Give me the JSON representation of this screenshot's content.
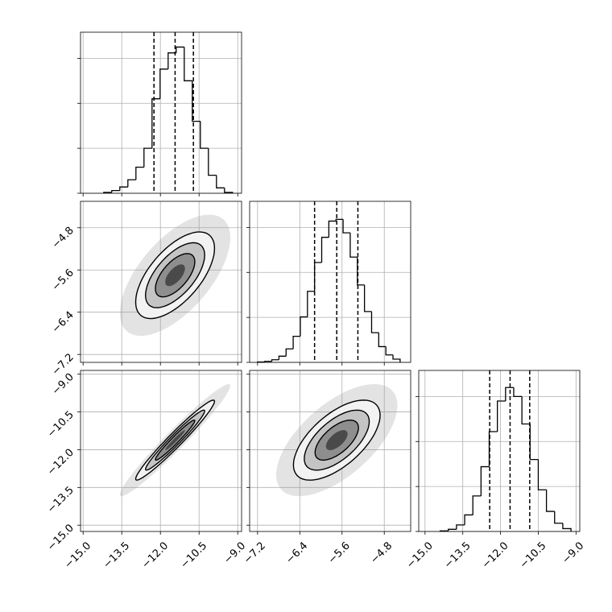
{
  "chart_data": {
    "type": "corner",
    "params": [
      {
        "xlim": [
          -15.1,
          -8.85
        ],
        "xticks": [
          {
            "value": -15,
            "label": "−15.0"
          },
          {
            "value": -13.5,
            "label": "−13.5"
          },
          {
            "value": -12,
            "label": "−12.0"
          },
          {
            "value": -10.5,
            "label": "−10.5"
          },
          {
            "value": -9,
            "label": "−9.0"
          }
        ],
        "bins": [
          -14.2,
          -13.8875,
          -13.575,
          -13.2625,
          -12.95,
          -12.6375,
          -12.325,
          -12.0125,
          -11.7,
          -11.3875,
          -11.075,
          -10.7625,
          -10.45,
          -10.1375,
          -9.825,
          -9.5125,
          -9.2
        ],
        "counts": [
          10,
          30,
          70,
          150,
          290,
          500,
          1050,
          1380,
          1560,
          1625,
          1250,
          800,
          500,
          200,
          60,
          10
        ],
        "quantiles": [
          -12.25,
          -11.43,
          -10.72
        ],
        "ylim": [
          0,
          1790
        ],
        "yticks": [
          0,
          500,
          1000,
          1500
        ]
      },
      {
        "xlim": [
          -7.35,
          -4.3
        ],
        "xticks": [
          {
            "value": -7.2,
            "label": "−7.2"
          },
          {
            "value": -6.4,
            "label": "−6.4"
          },
          {
            "value": -5.6,
            "label": "−5.6"
          },
          {
            "value": -4.8,
            "label": "−4.8"
          }
        ],
        "bins": [
          -7.2,
          -7.065,
          -6.93,
          -6.795,
          -6.66,
          -6.525,
          -6.39,
          -6.255,
          -6.12,
          -5.985,
          -5.85,
          -5.715,
          -5.58,
          -5.445,
          -5.31,
          -5.175,
          -5.04,
          -4.905,
          -4.77,
          -4.635,
          -4.5
        ],
        "counts": [
          4,
          11,
          29,
          69,
          150,
          290,
          505,
          790,
          1110,
          1390,
          1570,
          1590,
          1440,
          1170,
          860,
          565,
          330,
          175,
          83,
          36
        ],
        "quantiles": [
          -6.12,
          -5.7,
          -5.3
        ],
        "ylim": [
          0,
          1790
        ],
        "yticks": [
          0,
          500,
          1000,
          1500
        ]
      },
      {
        "xlim": [
          -15.25,
          -8.85
        ],
        "xticks": [
          {
            "value": -15,
            "label": "−15.0"
          },
          {
            "value": -13.5,
            "label": "−13.5"
          },
          {
            "value": -12,
            "label": "−12.0"
          },
          {
            "value": -10.5,
            "label": "−10.5"
          },
          {
            "value": -9,
            "label": "−9.0"
          }
        ],
        "bins": [
          -14.4,
          -14.075,
          -13.75,
          -13.425,
          -13.1,
          -12.775,
          -12.45,
          -12.125,
          -11.8,
          -11.475,
          -11.15,
          -10.825,
          -10.5,
          -10.175,
          -9.85,
          -9.525,
          -9.2
        ],
        "counts": [
          7,
          24,
          73,
          184,
          395,
          720,
          1110,
          1450,
          1600,
          1500,
          1195,
          800,
          463,
          223,
          92,
          32
        ],
        "quantiles": [
          -12.43,
          -11.62,
          -10.84
        ],
        "ylim": [
          0,
          1790
        ],
        "yticks": [
          0,
          500,
          1000,
          1500
        ]
      }
    ],
    "pairs": [
      {
        "corr": 0.62
      },
      {
        "corr": 0.97
      },
      {
        "corr": 0.62
      }
    ],
    "levels": [
      0.5,
      1.0,
      1.5,
      2.0
    ],
    "scatter_sigma": 2.8,
    "grid": true
  }
}
